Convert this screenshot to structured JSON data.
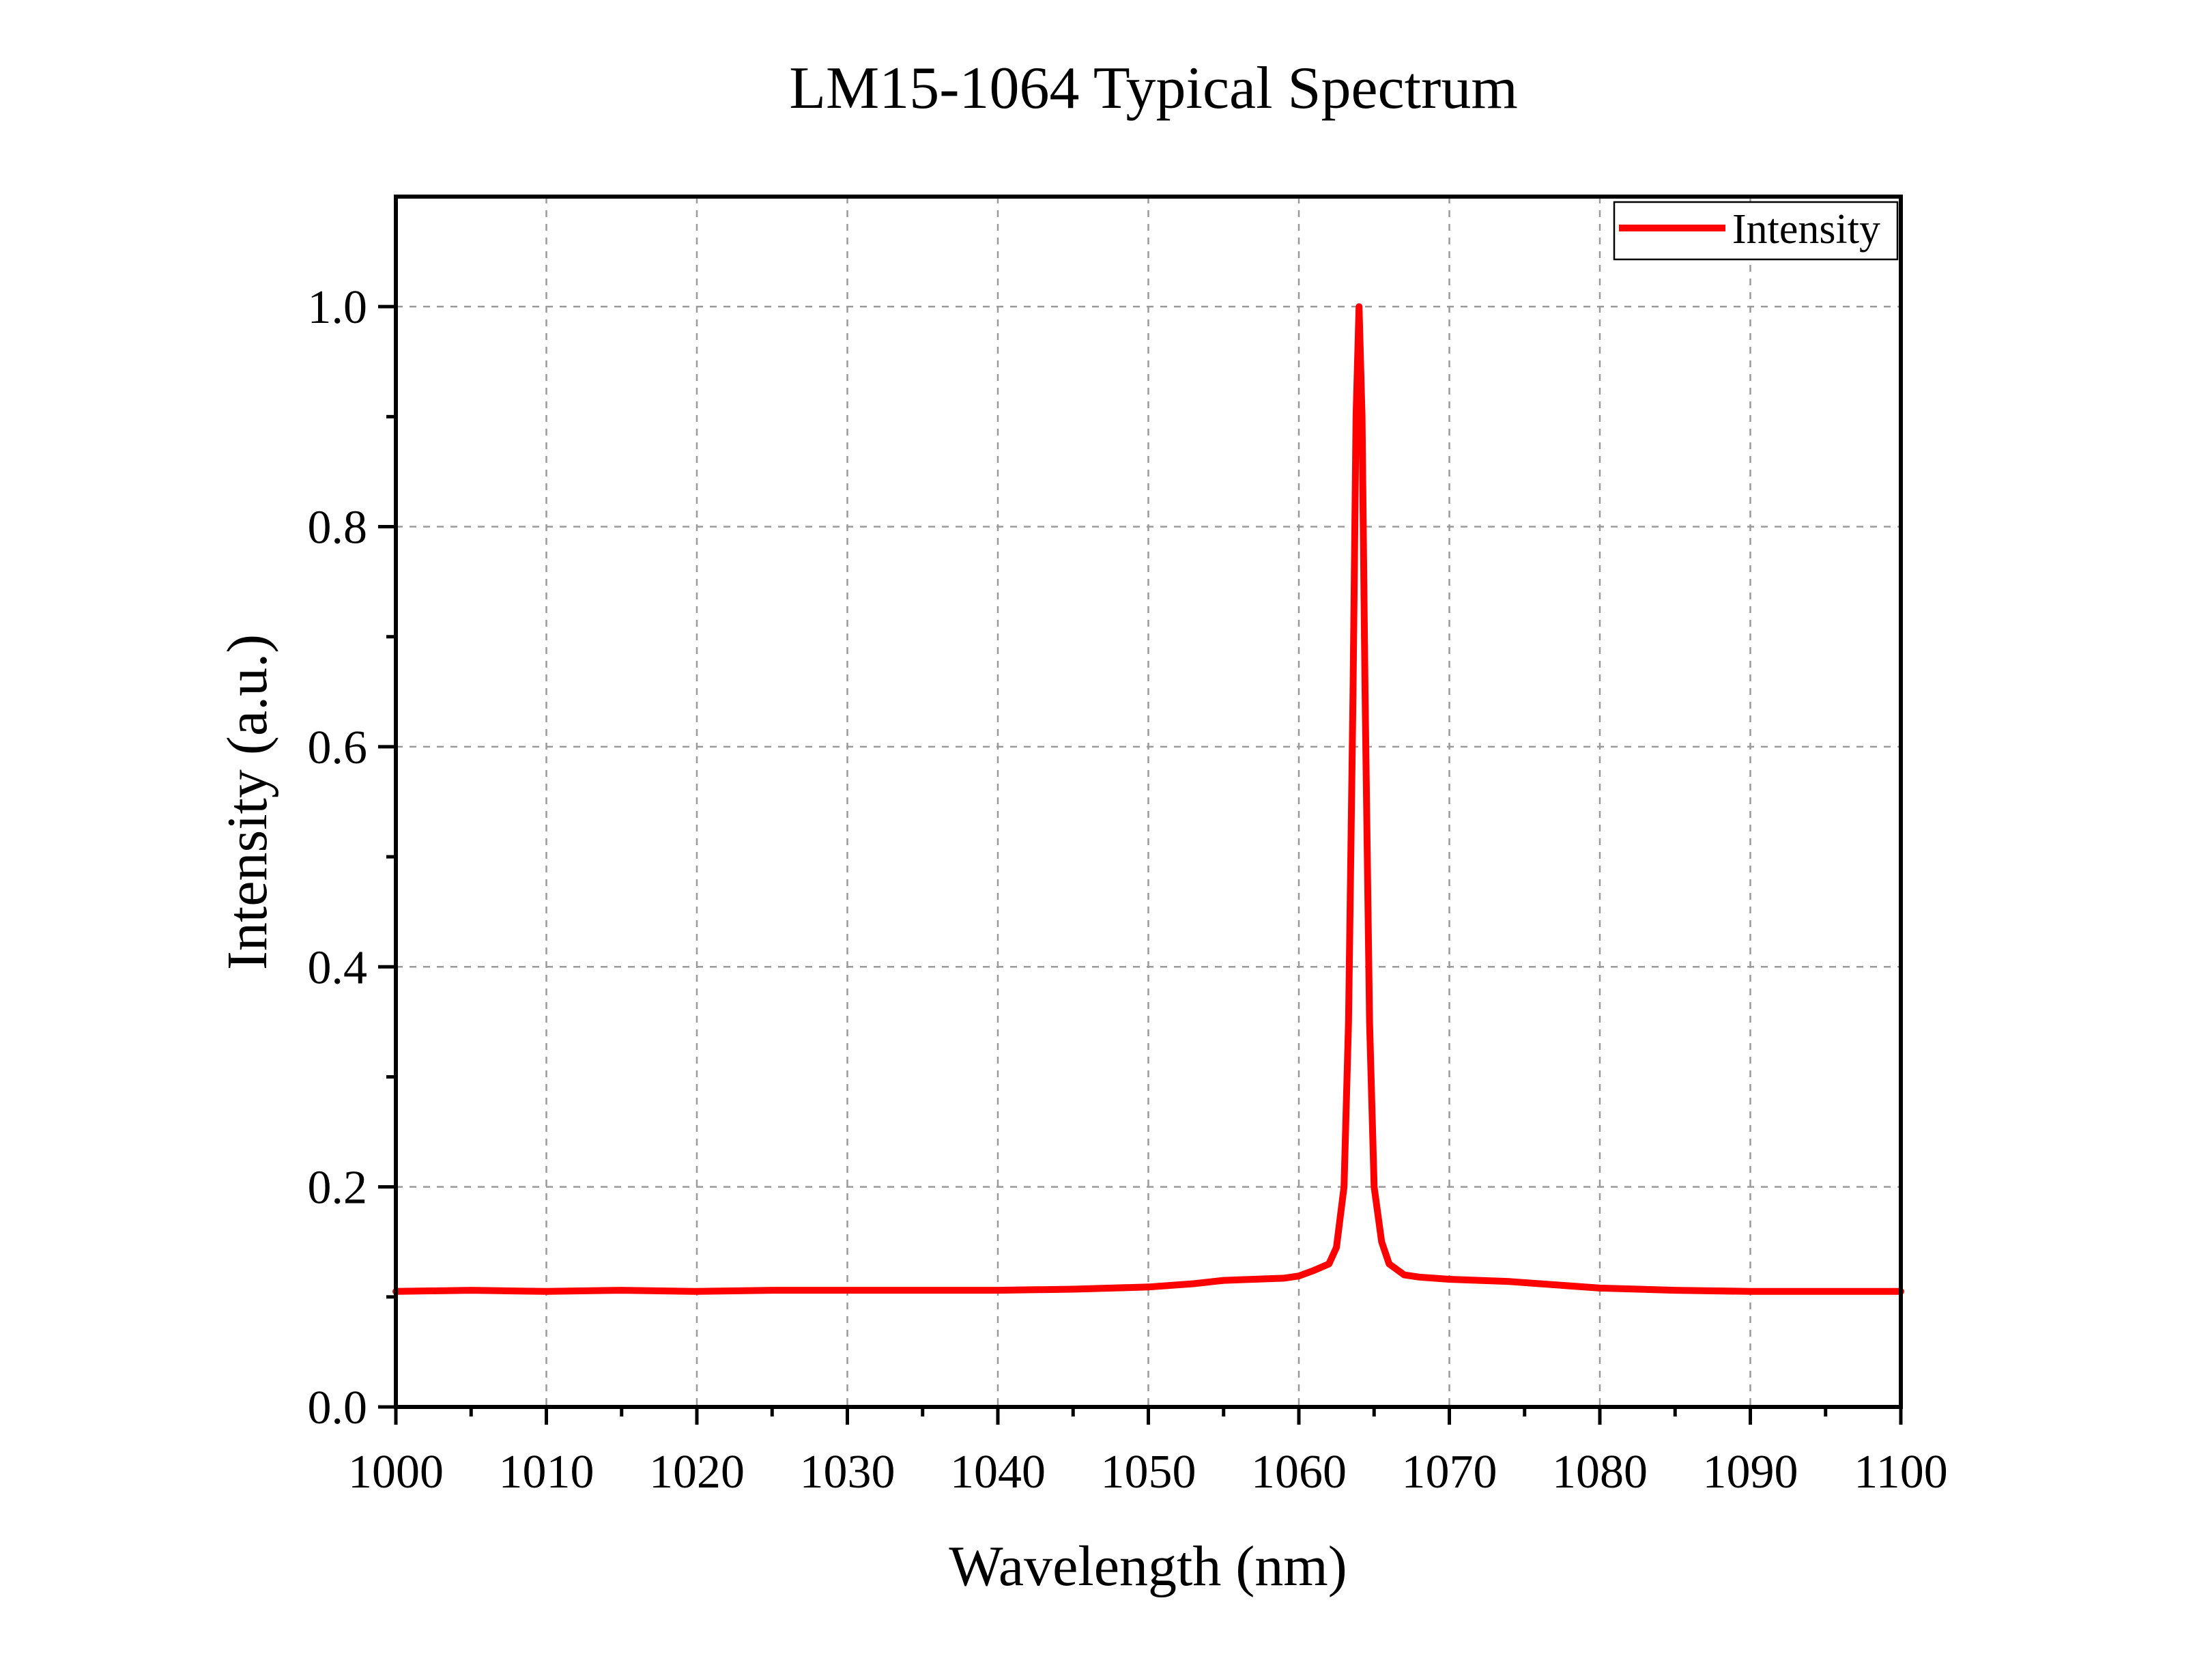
{
  "chart_data": {
    "type": "line",
    "title": "LM15-1064 Typical Spectrum",
    "xlabel": "Wavelength (nm)",
    "ylabel": "Intensity (a.u.)",
    "xlim": [
      1000,
      1100
    ],
    "ylim": [
      0,
      1.1
    ],
    "x_ticks": [
      1000,
      1010,
      1020,
      1030,
      1040,
      1050,
      1060,
      1070,
      1080,
      1090,
      1100
    ],
    "x_tick_labels": [
      "1000",
      "1010",
      "1020",
      "1030",
      "1040",
      "1050",
      "1060",
      "1070",
      "1080",
      "1090",
      "1100"
    ],
    "y_ticks": [
      0,
      0.2,
      0.4,
      0.6,
      0.8,
      1.0
    ],
    "y_tick_labels": [
      "0.0",
      "0.2",
      "0.4",
      "0.6",
      "0.8",
      "1.0"
    ],
    "x_minor_step": 5,
    "y_minor_step": 0.1,
    "grid": true,
    "legend": {
      "position": "top-right",
      "entries": [
        "Intensity"
      ]
    },
    "colors": {
      "series": "#ff0000",
      "axes": "#000000",
      "grid": "#9a9a9a"
    },
    "series": [
      {
        "name": "Intensity",
        "x": [
          1000,
          1005,
          1010,
          1015,
          1020,
          1025,
          1030,
          1035,
          1040,
          1045,
          1050,
          1053,
          1055,
          1057,
          1059,
          1060,
          1061,
          1062,
          1062.5,
          1063,
          1063.3,
          1063.6,
          1063.8,
          1064,
          1064.2,
          1064.4,
          1064.7,
          1065,
          1065.5,
          1066,
          1067,
          1068,
          1070,
          1072,
          1074,
          1076,
          1080,
          1085,
          1090,
          1095,
          1100
        ],
        "y": [
          0.105,
          0.106,
          0.105,
          0.106,
          0.105,
          0.106,
          0.106,
          0.106,
          0.106,
          0.107,
          0.109,
          0.112,
          0.115,
          0.116,
          0.117,
          0.119,
          0.124,
          0.13,
          0.145,
          0.2,
          0.35,
          0.65,
          0.9,
          1.0,
          0.9,
          0.65,
          0.35,
          0.2,
          0.15,
          0.13,
          0.12,
          0.118,
          0.116,
          0.115,
          0.114,
          0.112,
          0.108,
          0.106,
          0.105,
          0.105,
          0.105
        ]
      }
    ]
  }
}
